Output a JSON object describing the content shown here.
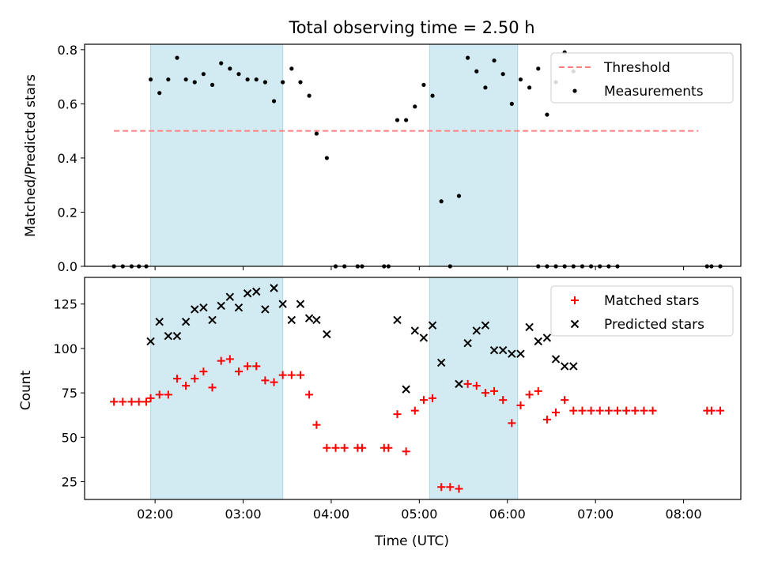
{
  "figure": {
    "title": "Total observing time = 2.50 h",
    "xlabel": "Time (UTC)",
    "xticks": [
      "02:00",
      "03:00",
      "04:00",
      "05:00",
      "06:00",
      "07:00",
      "08:00"
    ],
    "x_range": [
      "01:12",
      "08:39"
    ],
    "shaded_intervals": [
      [
        "01:57",
        "03:27"
      ],
      [
        "05:07",
        "06:07"
      ]
    ],
    "shade_color": "#add8e6",
    "grid": false
  },
  "chart_data": [
    {
      "type": "scatter",
      "ylabel": "Matched/Predicted stars",
      "ylim": [
        0,
        0.82
      ],
      "yticks": [
        "0.0",
        "0.2",
        "0.4",
        "0.6",
        "0.8"
      ],
      "legend": "top-right",
      "series": [
        {
          "name": "Threshold",
          "kind": "line",
          "style": "dashed",
          "color": "#ff8080",
          "x": [
            "01:32",
            "08:10"
          ],
          "y": [
            0.5,
            0.5
          ]
        },
        {
          "name": "Measurements",
          "kind": "dot",
          "color": "#000000",
          "points": [
            [
              "01:32",
              0.0
            ],
            [
              "01:38",
              0.0
            ],
            [
              "01:44",
              0.0
            ],
            [
              "01:49",
              0.0
            ],
            [
              "01:54",
              0.0
            ],
            [
              "01:57",
              0.69
            ],
            [
              "02:03",
              0.64
            ],
            [
              "02:09",
              0.69
            ],
            [
              "02:15",
              0.77
            ],
            [
              "02:21",
              0.69
            ],
            [
              "02:27",
              0.68
            ],
            [
              "02:33",
              0.71
            ],
            [
              "02:39",
              0.67
            ],
            [
              "02:45",
              0.75
            ],
            [
              "02:51",
              0.73
            ],
            [
              "02:57",
              0.71
            ],
            [
              "03:03",
              0.69
            ],
            [
              "03:09",
              0.69
            ],
            [
              "03:15",
              0.68
            ],
            [
              "03:21",
              0.61
            ],
            [
              "03:27",
              0.68
            ],
            [
              "03:33",
              0.73
            ],
            [
              "03:39",
              0.68
            ],
            [
              "03:45",
              0.63
            ],
            [
              "03:50",
              0.49
            ],
            [
              "03:57",
              0.4
            ],
            [
              "04:03",
              0.0
            ],
            [
              "04:09",
              0.0
            ],
            [
              "04:18",
              0.0
            ],
            [
              "04:21",
              0.0
            ],
            [
              "04:36",
              0.0
            ],
            [
              "04:39",
              0.0
            ],
            [
              "04:45",
              0.54
            ],
            [
              "04:51",
              0.54
            ],
            [
              "04:57",
              0.59
            ],
            [
              "05:03",
              0.67
            ],
            [
              "05:09",
              0.63
            ],
            [
              "05:15",
              0.24
            ],
            [
              "05:21",
              0.0
            ],
            [
              "05:27",
              0.26
            ],
            [
              "05:33",
              0.77
            ],
            [
              "05:39",
              0.72
            ],
            [
              "05:45",
              0.66
            ],
            [
              "05:51",
              0.76
            ],
            [
              "05:57",
              0.71
            ],
            [
              "06:03",
              0.6
            ],
            [
              "06:09",
              0.69
            ],
            [
              "06:15",
              0.66
            ],
            [
              "06:21",
              0.73
            ],
            [
              "06:27",
              0.56
            ],
            [
              "06:33",
              0.68
            ],
            [
              "06:39",
              0.79
            ],
            [
              "06:45",
              0.72
            ],
            [
              "06:21",
              0.0
            ],
            [
              "06:27",
              0.0
            ],
            [
              "06:33",
              0.0
            ],
            [
              "06:39",
              0.0
            ],
            [
              "06:45",
              0.0
            ],
            [
              "06:51",
              0.0
            ],
            [
              "06:57",
              0.0
            ],
            [
              "07:03",
              0.0
            ],
            [
              "07:09",
              0.0
            ],
            [
              "07:15",
              0.0
            ],
            [
              "08:16",
              0.0
            ],
            [
              "08:19",
              0.0
            ],
            [
              "08:25",
              0.0
            ]
          ]
        }
      ]
    },
    {
      "type": "scatter",
      "ylabel": "Count",
      "ylim": [
        15,
        140
      ],
      "yticks": [
        "25",
        "50",
        "75",
        "100",
        "125"
      ],
      "legend": "top-right",
      "series": [
        {
          "name": "Matched stars",
          "marker": "plus",
          "color": "#ff0000",
          "points": [
            [
              "01:32",
              70
            ],
            [
              "01:38",
              70
            ],
            [
              "01:44",
              70
            ],
            [
              "01:49",
              70
            ],
            [
              "01:54",
              70
            ],
            [
              "01:57",
              72
            ],
            [
              "02:03",
              74
            ],
            [
              "02:09",
              74
            ],
            [
              "02:15",
              83
            ],
            [
              "02:21",
              79
            ],
            [
              "02:27",
              83
            ],
            [
              "02:33",
              87
            ],
            [
              "02:39",
              78
            ],
            [
              "02:45",
              93
            ],
            [
              "02:51",
              94
            ],
            [
              "02:57",
              87
            ],
            [
              "03:03",
              90
            ],
            [
              "03:09",
              90
            ],
            [
              "03:15",
              82
            ],
            [
              "03:21",
              81
            ],
            [
              "03:27",
              85
            ],
            [
              "03:33",
              85
            ],
            [
              "03:39",
              85
            ],
            [
              "03:45",
              74
            ],
            [
              "03:50",
              57
            ],
            [
              "03:57",
              44
            ],
            [
              "04:03",
              44
            ],
            [
              "04:09",
              44
            ],
            [
              "04:18",
              44
            ],
            [
              "04:21",
              44
            ],
            [
              "04:36",
              44
            ],
            [
              "04:39",
              44
            ],
            [
              "04:45",
              63
            ],
            [
              "04:51",
              42
            ],
            [
              "04:57",
              65
            ],
            [
              "05:03",
              71
            ],
            [
              "05:09",
              72
            ],
            [
              "05:15",
              22
            ],
            [
              "05:21",
              22
            ],
            [
              "05:27",
              21
            ],
            [
              "05:33",
              80
            ],
            [
              "05:39",
              79
            ],
            [
              "05:45",
              75
            ],
            [
              "05:51",
              76
            ],
            [
              "05:57",
              71
            ],
            [
              "06:03",
              58
            ],
            [
              "06:09",
              68
            ],
            [
              "06:15",
              74
            ],
            [
              "06:21",
              76
            ],
            [
              "06:27",
              60
            ],
            [
              "06:33",
              64
            ],
            [
              "06:39",
              71
            ],
            [
              "06:45",
              65
            ],
            [
              "06:51",
              65
            ],
            [
              "06:57",
              65
            ],
            [
              "07:03",
              65
            ],
            [
              "07:09",
              65
            ],
            [
              "07:15",
              65
            ],
            [
              "07:21",
              65
            ],
            [
              "07:27",
              65
            ],
            [
              "07:33",
              65
            ],
            [
              "07:39",
              65
            ],
            [
              "08:16",
              65
            ],
            [
              "08:19",
              65
            ],
            [
              "08:25",
              65
            ]
          ]
        },
        {
          "name": "Predicted stars",
          "marker": "x",
          "color": "#000000",
          "points": [
            [
              "01:57",
              104
            ],
            [
              "02:03",
              115
            ],
            [
              "02:09",
              107
            ],
            [
              "02:15",
              107
            ],
            [
              "02:21",
              115
            ],
            [
              "02:27",
              122
            ],
            [
              "02:33",
              123
            ],
            [
              "02:39",
              116
            ],
            [
              "02:45",
              124
            ],
            [
              "02:51",
              129
            ],
            [
              "02:57",
              123
            ],
            [
              "03:03",
              131
            ],
            [
              "03:09",
              132
            ],
            [
              "03:15",
              122
            ],
            [
              "03:21",
              134
            ],
            [
              "03:27",
              125
            ],
            [
              "03:33",
              116
            ],
            [
              "03:39",
              125
            ],
            [
              "03:45",
              117
            ],
            [
              "03:50",
              116
            ],
            [
              "03:57",
              108
            ],
            [
              "04:45",
              116
            ],
            [
              "04:51",
              77
            ],
            [
              "04:57",
              110
            ],
            [
              "05:03",
              106
            ],
            [
              "05:09",
              113
            ],
            [
              "05:15",
              92
            ],
            [
              "05:27",
              80
            ],
            [
              "05:33",
              103
            ],
            [
              "05:39",
              110
            ],
            [
              "05:45",
              113
            ],
            [
              "05:51",
              99
            ],
            [
              "05:57",
              99
            ],
            [
              "06:03",
              97
            ],
            [
              "06:09",
              97
            ],
            [
              "06:15",
              112
            ],
            [
              "06:21",
              104
            ],
            [
              "06:27",
              106
            ],
            [
              "06:33",
              94
            ],
            [
              "06:39",
              90
            ],
            [
              "06:45",
              90
            ]
          ]
        }
      ]
    }
  ]
}
